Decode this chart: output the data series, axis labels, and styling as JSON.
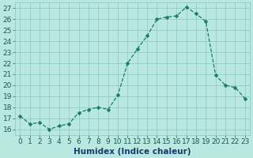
{
  "x": [
    0,
    1,
    2,
    3,
    4,
    5,
    6,
    7,
    8,
    9,
    10,
    11,
    12,
    13,
    14,
    15,
    16,
    17,
    18,
    19,
    20,
    21,
    22,
    23
  ],
  "y": [
    17.2,
    16.5,
    16.6,
    16.0,
    16.3,
    16.5,
    17.5,
    17.8,
    18.0,
    17.8,
    19.1,
    22.0,
    23.3,
    24.5,
    26.0,
    26.2,
    26.3,
    27.1,
    26.5,
    25.8,
    20.9,
    20.0,
    19.8,
    18.8
  ],
  "line_color": "#1a7a6e",
  "marker": "D",
  "marker_size": 2.5,
  "bg_color": "#b8e8e0",
  "grid_color": "#8cc8c0",
  "xlabel": "Humidex (Indice chaleur)",
  "ylim": [
    15.5,
    27.5
  ],
  "xlim": [
    -0.5,
    23.5
  ],
  "yticks": [
    16,
    17,
    18,
    19,
    20,
    21,
    22,
    23,
    24,
    25,
    26,
    27
  ],
  "xtick_labels": [
    "0",
    "1",
    "2",
    "3",
    "4",
    "5",
    "6",
    "7",
    "8",
    "9",
    "10",
    "11",
    "12",
    "13",
    "14",
    "15",
    "16",
    "17",
    "18",
    "19",
    "20",
    "21",
    "22",
    "23"
  ],
  "label_fontsize": 7.5,
  "tick_fontsize": 6.5,
  "tick_color": "#1a5a50",
  "xlabel_color": "#1a3a6e"
}
